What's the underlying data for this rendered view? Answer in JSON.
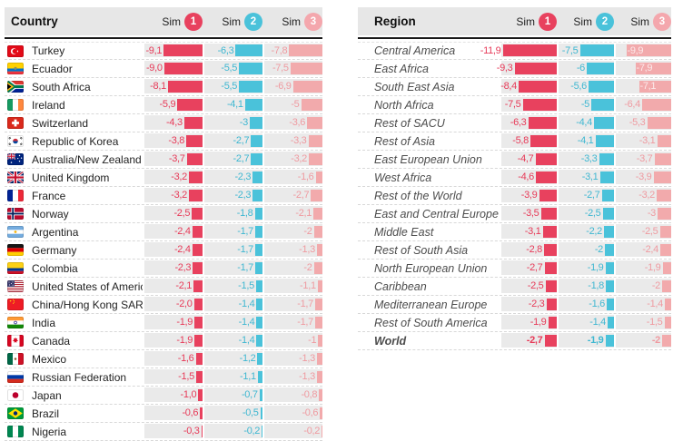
{
  "palette": {
    "sim1": "#e8415e",
    "sim1_text": "#e73a58",
    "sim2": "#4ac2da",
    "sim2_text": "#3eb7d1",
    "sim3": "#f2aaac",
    "sim3_text": "#ef9aa0",
    "header_bg": "#e7e7e7",
    "cell_bg": "#eaeaea",
    "header_rule": "#1a1a1a",
    "row_divider": "#d8d8d8",
    "country_text": "#222222",
    "region_text": "#4c4c4c"
  },
  "chart_data": [
    {
      "type": "bar",
      "orientation": "horizontal",
      "title": "Country",
      "legend": [
        {
          "label": "Sim",
          "num": "1",
          "color": "#e8415e"
        },
        {
          "label": "Sim",
          "num": "2",
          "color": "#4ac2da"
        },
        {
          "label": "Sim",
          "num": "3",
          "color": "#f4a7ad"
        }
      ],
      "xlim": [
        -12,
        0
      ],
      "grid": false,
      "categories": [
        "Turkey",
        "Ecuador",
        "South Africa",
        "Ireland",
        "Switzerland",
        "Republic of Korea",
        "Australia/New Zealand",
        "United Kingdom",
        "France",
        "Norway",
        "Argentina",
        "Germany",
        "Colombia",
        "United States of America",
        "China/Hong Kong SAR",
        "India",
        "Canada",
        "Mexico",
        "Russian Federation",
        "Japan",
        "Brazil",
        "Nigeria"
      ],
      "flags": [
        "tr",
        "ec",
        "za",
        "ie",
        "ch",
        "kr",
        "au",
        "gb",
        "fr",
        "no",
        "ar",
        "de",
        "co",
        "us",
        "cn",
        "in",
        "ca",
        "mx",
        "ru",
        "jp",
        "br",
        "ng"
      ],
      "series": [
        {
          "name": "Sim 1",
          "color": "#e8415e",
          "text_color": "#e73a58",
          "values": [
            -9.1,
            -9.0,
            -8.1,
            -5.9,
            -4.3,
            -3.8,
            -3.7,
            -3.2,
            -3.2,
            -2.5,
            -2.4,
            -2.4,
            -2.3,
            -2.1,
            -2.0,
            -1.9,
            -1.9,
            -1.6,
            -1.5,
            -1.0,
            -0.6,
            -0.3
          ],
          "labels": [
            "-9,1",
            "-9,0",
            "-8,1",
            "-5,9",
            "-4,3",
            "-3,8",
            "-3,7",
            "-3,2",
            "-3,2",
            "-2,5",
            "-2,4",
            "-2,4",
            "-2,3",
            "-2,1",
            "-2,0",
            "-1,9",
            "-1,9",
            "-1,6",
            "-1,5",
            "-1,0",
            "-0,6",
            "-0,3"
          ]
        },
        {
          "name": "Sim 2",
          "color": "#4ac2da",
          "text_color": "#3eb7d1",
          "values": [
            -6.3,
            -5.5,
            -5.5,
            -4.1,
            -3,
            -2.7,
            -2.7,
            -2.3,
            -2.3,
            -1.8,
            -1.7,
            -1.7,
            -1.7,
            -1.5,
            -1.4,
            -1.4,
            -1.4,
            -1.2,
            -1.1,
            -0.7,
            -0.5,
            -0.2
          ],
          "labels": [
            "-6,3",
            "-5,5",
            "-5,5",
            "-4,1",
            "-3",
            "-2,7",
            "-2,7",
            "-2,3",
            "-2,3",
            "-1,8",
            "-1,7",
            "-1,7",
            "-1,7",
            "-1,5",
            "-1,4",
            "-1,4",
            "-1,4",
            "-1,2",
            "-1,1",
            "-0,7",
            "-0,5",
            "-0,2"
          ]
        },
        {
          "name": "Sim 3",
          "color": "#f2aaac",
          "text_color": "#ef9aa0",
          "values": [
            -7.8,
            -7.5,
            -6.9,
            -5,
            -3.6,
            -3.3,
            -3.2,
            -1.6,
            -2.7,
            -2.1,
            -2,
            -1.3,
            -2,
            -1.1,
            -1.7,
            -1.7,
            -1,
            -1.3,
            -1.3,
            -0.8,
            -0.6,
            -0.2
          ],
          "labels": [
            "-7,8",
            "-7,5",
            "-6,9",
            "-5",
            "-3,6",
            "-3,3",
            "-3,2",
            "-1,6",
            "-2,7",
            "-2,1",
            "-2",
            "-1,3",
            "-2",
            "-1,1",
            "-1,7",
            "-1,7",
            "-1",
            "-1,3",
            "-1,3",
            "-0,8",
            "-0,6",
            "-0,2"
          ]
        }
      ]
    },
    {
      "type": "bar",
      "orientation": "horizontal",
      "title": "Region",
      "legend": [
        {
          "label": "Sim",
          "num": "1",
          "color": "#e8415e"
        },
        {
          "label": "Sim",
          "num": "2",
          "color": "#4ac2da"
        },
        {
          "label": "Sim",
          "num": "3",
          "color": "#f4a7ad"
        }
      ],
      "xlim": [
        -12,
        0
      ],
      "grid": false,
      "bold_categories": [
        "World"
      ],
      "categories": [
        "Central America",
        "East Africa",
        "South East Asia",
        "North Africa",
        "Rest of SACU",
        "Rest of Asia",
        "East European Union",
        "West Africa",
        "Rest of the World",
        "East and Central Europe",
        "Middle East",
        "Rest of South Asia",
        "North European Union",
        "Caribbean",
        "Mediterranean Europe",
        "Rest of South America",
        "World"
      ],
      "series": [
        {
          "name": "Sim 1",
          "color": "#e8415e",
          "text_color": "#e73a58",
          "values": [
            -11.9,
            -9.3,
            -8.4,
            -7.5,
            -6.3,
            -5.8,
            -4.7,
            -4.6,
            -3.9,
            -3.5,
            -3.1,
            -2.8,
            -2.7,
            -2.5,
            -2.3,
            -1.9,
            -2.7
          ],
          "labels": [
            "-11,9",
            "-9,3",
            "-8,4",
            "-7,5",
            "-6,3",
            "-5,8",
            "-4,7",
            "-4,6",
            "-3,9",
            "-3,5",
            "-3,1",
            "-2,8",
            "-2,7",
            "-2,5",
            "-2,3",
            "-1,9",
            "-2,7"
          ]
        },
        {
          "name": "Sim 2",
          "color": "#4ac2da",
          "text_color": "#3eb7d1",
          "values": [
            -7.5,
            -6,
            -5.6,
            -5,
            -4.4,
            -4.1,
            -3.3,
            -3.1,
            -2.7,
            -2.5,
            -2.2,
            -2,
            -1.9,
            -1.8,
            -1.6,
            -1.4,
            -1.9
          ],
          "labels": [
            "-7,5",
            "-6",
            "-5,6",
            "-5",
            "-4,4",
            "-4,1",
            "-3,3",
            "-3,1",
            "-2,7",
            "-2,5",
            "-2,2",
            "-2",
            "-1,9",
            "-1,8",
            "-1,6",
            "-1,4",
            "-1,9"
          ]
        },
        {
          "name": "Sim 3",
          "color": "#f2aaac",
          "text_color": "#ef9aa0",
          "values": [
            -9.9,
            -7.9,
            -7.1,
            -6.4,
            -5.3,
            -3.1,
            -3.7,
            -3.9,
            -3.2,
            -3,
            -2.5,
            -2.4,
            -1.9,
            -2,
            -1.4,
            -1.5,
            -2
          ],
          "labels": [
            "-9,9",
            "-7,9",
            "-7,1",
            "-6,4",
            "-5,3",
            "-3,1",
            "-3,7",
            "-3,9",
            "-3,2",
            "-3",
            "-2,5",
            "-2,4",
            "-1,9",
            "-2",
            "-1,4",
            "-1,5",
            "-2"
          ]
        }
      ]
    }
  ]
}
